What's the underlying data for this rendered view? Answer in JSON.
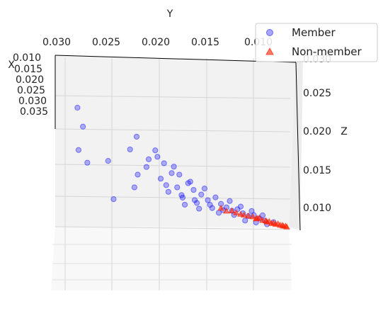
{
  "chart_data": {
    "type": "scatter",
    "projection": "3d",
    "title": "",
    "axes": {
      "y": {
        "label": "Y",
        "ticks": [
          "0.030",
          "0.025",
          "0.020",
          "0.015",
          "0.010"
        ]
      },
      "x": {
        "label": "X",
        "ticks": [
          "0.010",
          "0.015",
          "0.020",
          "0.025",
          "0.030",
          "0.035"
        ]
      },
      "z": {
        "label": "Z",
        "ticks": [
          "0.030",
          "0.025",
          "0.020",
          "0.015",
          "0.010"
        ]
      }
    },
    "legend": {
      "placement": "top-right",
      "entries": [
        {
          "name": "Member",
          "marker": "circle",
          "color": "#0000ff"
        },
        {
          "name": "Non-member",
          "marker": "triangle",
          "color": "#ff2200"
        }
      ]
    },
    "grid": true,
    "series": [
      {
        "name": "Member",
        "marker": "circle",
        "color": "#0000ff",
        "points": [
          [
            0.0291,
            0.034,
            0.0245
          ],
          [
            0.0286,
            0.0335,
            0.0215
          ],
          [
            0.029,
            0.031,
            0.018
          ],
          [
            0.0282,
            0.0305,
            0.016
          ],
          [
            0.0263,
            0.0285,
            0.0165
          ],
          [
            0.0243,
            0.027,
            0.0185
          ],
          [
            0.0237,
            0.0275,
            0.0205
          ],
          [
            0.0236,
            0.0265,
            0.0145
          ],
          [
            0.0239,
            0.026,
            0.0125
          ],
          [
            0.0258,
            0.027,
            0.0105
          ],
          [
            0.022,
            0.0255,
            0.0185
          ],
          [
            0.0212,
            0.0248,
            0.0165
          ],
          [
            0.0205,
            0.024,
            0.015
          ],
          [
            0.0215,
            0.025,
            0.014
          ],
          [
            0.0228,
            0.0258,
            0.0158
          ],
          [
            0.0198,
            0.0235,
            0.0148
          ],
          [
            0.019,
            0.0228,
            0.0135
          ],
          [
            0.02,
            0.023,
            0.0128
          ],
          [
            0.0208,
            0.0238,
            0.012
          ],
          [
            0.0195,
            0.0225,
            0.0112
          ],
          [
            0.0185,
            0.022,
            0.0125
          ],
          [
            0.0178,
            0.0215,
            0.0118
          ],
          [
            0.0182,
            0.021,
            0.0105
          ],
          [
            0.0172,
            0.0205,
            0.011
          ],
          [
            0.0165,
            0.02,
            0.0115
          ],
          [
            0.016,
            0.0195,
            0.0105
          ],
          [
            0.0168,
            0.0198,
            0.0098
          ],
          [
            0.0155,
            0.019,
            0.01
          ],
          [
            0.015,
            0.0185,
            0.0095
          ],
          [
            0.0145,
            0.018,
            0.0098
          ],
          [
            0.014,
            0.0175,
            0.0092
          ],
          [
            0.0135,
            0.017,
            0.0088
          ],
          [
            0.013,
            0.0165,
            0.009
          ],
          [
            0.0125,
            0.016,
            0.0085
          ],
          [
            0.012,
            0.0155,
            0.0082
          ],
          [
            0.0175,
            0.0212,
            0.0128
          ],
          [
            0.0188,
            0.0222,
            0.0138
          ],
          [
            0.0203,
            0.0244,
            0.016
          ],
          [
            0.0218,
            0.0252,
            0.0175
          ],
          [
            0.0226,
            0.0262,
            0.017
          ],
          [
            0.021,
            0.0246,
            0.013
          ],
          [
            0.0193,
            0.0232,
            0.01
          ],
          [
            0.018,
            0.0218,
            0.0095
          ],
          [
            0.0162,
            0.0202,
            0.009
          ],
          [
            0.0148,
            0.0188,
            0.0088
          ],
          [
            0.0138,
            0.0178,
            0.008
          ],
          [
            0.0128,
            0.0168,
            0.0078
          ],
          [
            0.0118,
            0.0158,
            0.0076
          ],
          [
            0.0196,
            0.0236,
            0.0115
          ],
          [
            0.0184,
            0.0226,
            0.0108
          ],
          [
            0.017,
            0.021,
            0.0102
          ],
          [
            0.0158,
            0.0196,
            0.0095
          ],
          [
            0.0152,
            0.0192,
            0.011
          ],
          [
            0.0142,
            0.0182,
            0.0102
          ],
          [
            0.0132,
            0.0172,
            0.0096
          ],
          [
            0.0122,
            0.0162,
            0.009
          ],
          [
            0.0112,
            0.0152,
            0.008
          ]
        ]
      },
      {
        "name": "Non-member",
        "marker": "triangle",
        "color": "#ff2200",
        "points": [
          [
            0.015,
            0.0185,
            0.0095
          ],
          [
            0.0142,
            0.018,
            0.009
          ],
          [
            0.0135,
            0.0172,
            0.0088
          ],
          [
            0.0128,
            0.0166,
            0.0084
          ],
          [
            0.0122,
            0.016,
            0.0082
          ],
          [
            0.0118,
            0.0156,
            0.008
          ],
          [
            0.0114,
            0.0152,
            0.0078
          ],
          [
            0.011,
            0.0148,
            0.0077
          ],
          [
            0.0106,
            0.0144,
            0.0076
          ],
          [
            0.0103,
            0.014,
            0.0075
          ],
          [
            0.01,
            0.0137,
            0.0074
          ],
          [
            0.0125,
            0.0163,
            0.0086
          ],
          [
            0.0116,
            0.0154,
            0.0081
          ],
          [
            0.0108,
            0.0146,
            0.0078
          ],
          [
            0.0131,
            0.0169,
            0.0087
          ],
          [
            0.0139,
            0.0176,
            0.0089
          ],
          [
            0.0146,
            0.0183,
            0.0092
          ],
          [
            0.0155,
            0.019,
            0.0094
          ],
          [
            0.0112,
            0.015,
            0.0079
          ],
          [
            0.0104,
            0.0142,
            0.0076
          ],
          [
            0.0101,
            0.0139,
            0.0075
          ],
          [
            0.016,
            0.0196,
            0.0098
          ],
          [
            0.0127,
            0.0165,
            0.0085
          ],
          [
            0.0119,
            0.0157,
            0.0082
          ]
        ]
      }
    ]
  }
}
